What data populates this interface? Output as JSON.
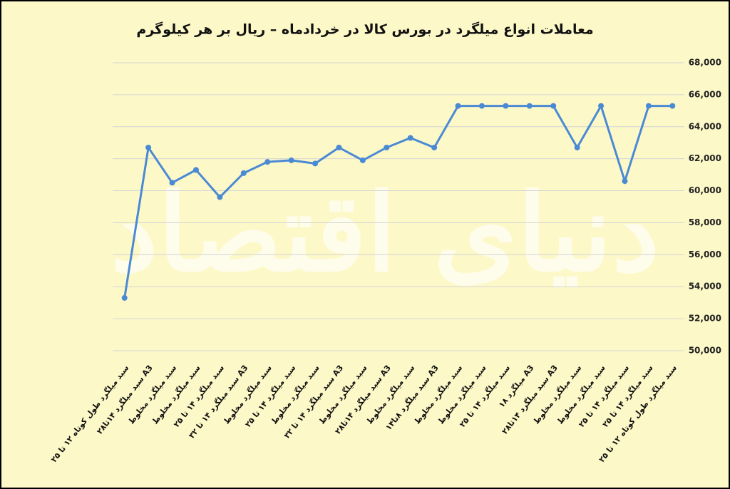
{
  "chart_data": {
    "type": "line",
    "title": "معاملات انواع میلگرد در بورس کالا در خردادماه – ریال بر هر کیلوگرم",
    "watermark": "دنیای اقتصاد",
    "categories": [
      "سبد میلگرد طول کوتاه ۱۲ تا ۲۵",
      "سبد میلگرد ۱۴تا۲۸ A3",
      "سبد میلگرد مخلوط",
      "سبد میلگرد مخلوط",
      "سبد میلگرد ۱۴ تا ۲۵",
      "سبد میلگرد ۱۴ تا ۳۲ A3",
      "سبد میلگرد مخلوط",
      "سبد میلگرد ۱۴ تا ۲۵",
      "سبد میلگرد مخلوط",
      "سبد میلگرد ۱۴ تا ۳۲ A3",
      "سبد میلگرد مخلوط",
      "سبد میلگرد ۱۴تا۲۸ A3",
      "سبد میلگرد مخلوط",
      "سبد میلگرد ۸تا۱۴ A3",
      "سبد میلگرد مخلوط",
      "سبد میلگرد مخلوط",
      "سبد میلگرد ۱۴ تا ۲۵",
      "میلگرد ۱۸ A3",
      "سبد میلگرد ۱۴تا۲۸ A3",
      "سبد میلگرد مخلوط",
      "سبد میلگرد مخلوط",
      "سبد میلگرد ۱۴ تا ۲۵",
      "سبد میلگرد ۱۴ تا ۲۵",
      "سبد میلگرد طول کوتاه ۱۲ تا ۲۵"
    ],
    "series": [
      {
        "color": "#4a8ad4",
        "values": [
          53300,
          62700,
          60500,
          61300,
          59600,
          61100,
          61800,
          61900,
          61700,
          62700,
          61900,
          62700,
          63300,
          62700,
          65300,
          65300,
          65300,
          65300,
          65300,
          62700,
          65300,
          60600,
          65300,
          65300
        ]
      }
    ],
    "ylim": [
      50000,
      68000
    ],
    "yticks": [
      {
        "value": 50000,
        "label": "50,000"
      },
      {
        "value": 52000,
        "label": "52,000"
      },
      {
        "value": 54000,
        "label": "54,000"
      },
      {
        "value": 56000,
        "label": "56,000"
      },
      {
        "value": 58000,
        "label": "58,000"
      },
      {
        "value": 60000,
        "label": "60,000"
      },
      {
        "value": 62000,
        "label": "62,000"
      },
      {
        "value": 64000,
        "label": "64,000"
      },
      {
        "value": 66000,
        "label": "66,000"
      },
      {
        "value": 68000,
        "label": "68,000"
      }
    ],
    "grid": true
  }
}
